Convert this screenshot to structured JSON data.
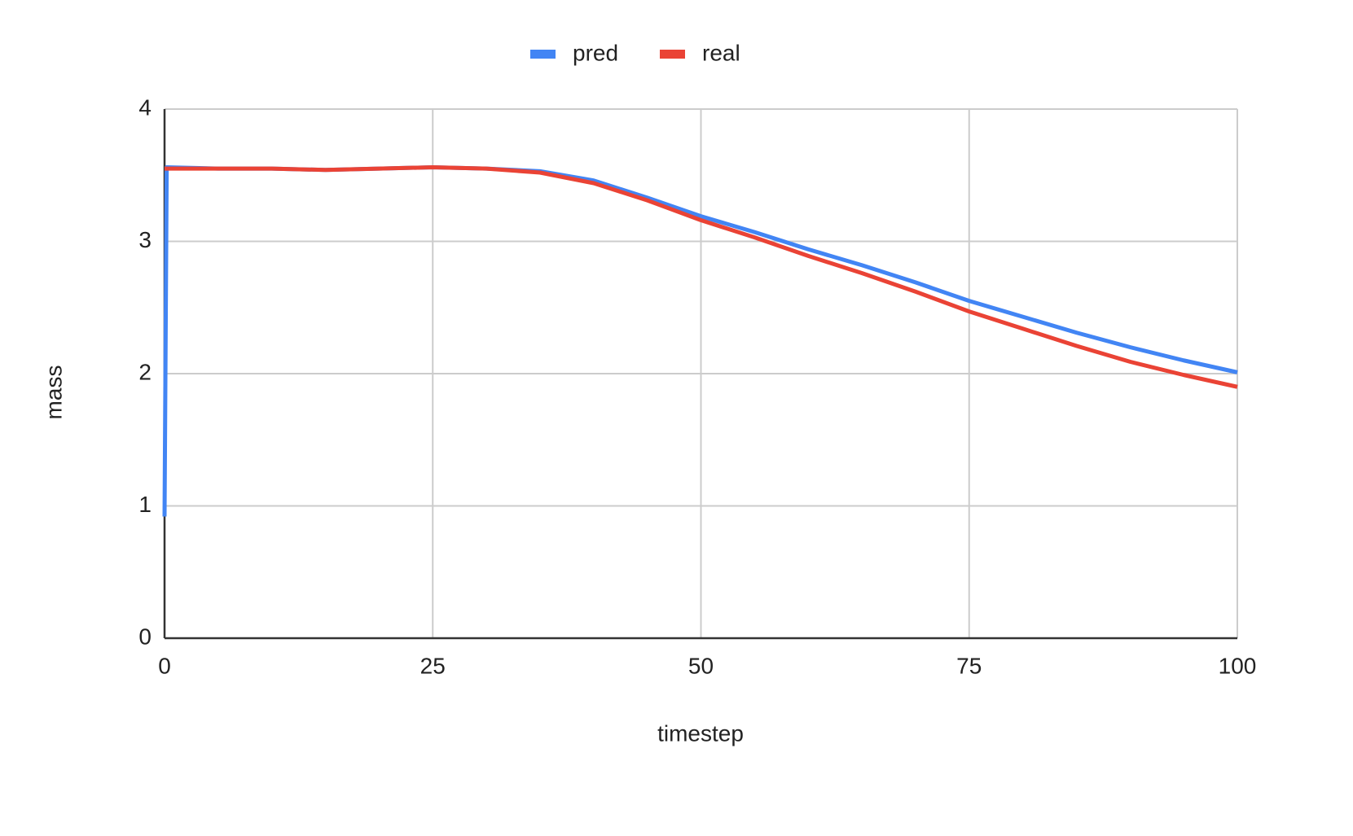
{
  "chart_data": {
    "type": "line",
    "x_label": "timestep",
    "y_label": "mass",
    "x": [
      0,
      0.2,
      5,
      10,
      15,
      20,
      25,
      30,
      35,
      40,
      45,
      50,
      55,
      60,
      65,
      70,
      75,
      80,
      85,
      90,
      95,
      100
    ],
    "series": [
      {
        "name": "pred",
        "color": "#4285f4",
        "values": [
          0.92,
          3.56,
          3.55,
          3.55,
          3.54,
          3.55,
          3.56,
          3.55,
          3.53,
          3.46,
          3.33,
          3.19,
          3.07,
          2.94,
          2.82,
          2.69,
          2.55,
          2.43,
          2.31,
          2.2,
          2.1,
          2.01
        ]
      },
      {
        "name": "real",
        "color": "#ea4335",
        "values": [
          3.55,
          3.55,
          3.55,
          3.55,
          3.54,
          3.55,
          3.56,
          3.55,
          3.52,
          3.44,
          3.31,
          3.16,
          3.03,
          2.89,
          2.76,
          2.62,
          2.47,
          2.34,
          2.21,
          2.09,
          1.99,
          1.9
        ]
      }
    ],
    "xlim": [
      0,
      100
    ],
    "xticks": [
      0,
      25,
      50,
      75,
      100
    ],
    "ylim": [
      0,
      4
    ],
    "yticks": [
      0,
      1,
      2,
      3,
      4
    ],
    "grid": true,
    "legend": "top"
  }
}
